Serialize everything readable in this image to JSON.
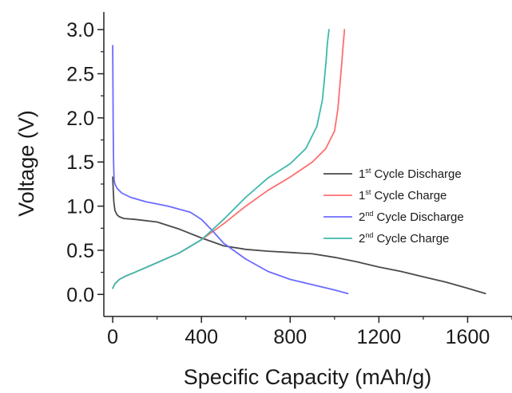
{
  "chart_data": {
    "type": "line",
    "title": "",
    "xlabel": "Specific Capacity (mAh/g)",
    "ylabel": "Voltage (V)",
    "xlim": [
      -40,
      1800
    ],
    "ylim": [
      -0.25,
      3.2
    ],
    "x_ticks": [
      0,
      400,
      800,
      1200,
      1600
    ],
    "x_tick_labels": [
      "0",
      "400",
      "800",
      "1200",
      "1600"
    ],
    "y_ticks": [
      0.0,
      0.5,
      1.0,
      1.5,
      2.0,
      2.5,
      3.0
    ],
    "y_tick_labels": [
      "0.0",
      "0.5",
      "1.0",
      "1.5",
      "2.0",
      "2.5",
      "3.0"
    ],
    "grid": false,
    "legend_position": "right-middle",
    "series": [
      {
        "name": "1st Cycle Discharge",
        "legend_main": "1",
        "legend_sup": "st",
        "legend_rest": " Cycle Discharge",
        "color": "#4a4a4a",
        "x": [
          0,
          2,
          5,
          10,
          20,
          30,
          50,
          100,
          200,
          300,
          400,
          500,
          600,
          700,
          800,
          900,
          1000,
          1100,
          1200,
          1300,
          1400,
          1500,
          1600,
          1680
        ],
        "y": [
          1.33,
          1.2,
          1.05,
          0.95,
          0.9,
          0.88,
          0.86,
          0.85,
          0.82,
          0.74,
          0.64,
          0.55,
          0.51,
          0.49,
          0.475,
          0.46,
          0.42,
          0.37,
          0.31,
          0.26,
          0.2,
          0.14,
          0.07,
          0.01
        ]
      },
      {
        "name": "1st Cycle Charge",
        "legend_main": "1",
        "legend_sup": "st",
        "legend_rest": " Cycle Charge",
        "color": "#ff6e6e",
        "x": [
          0,
          10,
          30,
          60,
          100,
          200,
          300,
          400,
          500,
          600,
          700,
          800,
          900,
          960,
          1000,
          1015,
          1025,
          1032,
          1038,
          1045
        ],
        "y": [
          0.07,
          0.12,
          0.17,
          0.21,
          0.25,
          0.36,
          0.47,
          0.62,
          0.8,
          1.0,
          1.18,
          1.33,
          1.5,
          1.65,
          1.85,
          2.1,
          2.4,
          2.6,
          2.8,
          3.0
        ]
      },
      {
        "name": "2nd Cycle Discharge",
        "legend_main": "2",
        "legend_sup": "nd",
        "legend_rest": " Cycle Discharge",
        "color": "#6b6bff",
        "x": [
          0,
          1,
          2,
          4,
          6,
          10,
          20,
          40,
          80,
          150,
          250,
          350,
          400,
          450,
          500,
          600,
          700,
          800,
          900,
          1000,
          1060
        ],
        "y": [
          2.82,
          2.4,
          1.9,
          1.5,
          1.3,
          1.25,
          1.2,
          1.15,
          1.1,
          1.05,
          1.0,
          0.93,
          0.85,
          0.72,
          0.58,
          0.4,
          0.26,
          0.17,
          0.11,
          0.05,
          0.01
        ]
      },
      {
        "name": "2nd Cycle Charge",
        "legend_main": "2",
        "legend_sup": "nd",
        "legend_rest": " Cycle Charge",
        "color": "#3fb8ad",
        "x": [
          0,
          10,
          30,
          60,
          100,
          200,
          300,
          400,
          500,
          600,
          700,
          800,
          870,
          920,
          945,
          955,
          962,
          968,
          975
        ],
        "y": [
          0.07,
          0.12,
          0.17,
          0.21,
          0.25,
          0.36,
          0.47,
          0.62,
          0.85,
          1.1,
          1.32,
          1.48,
          1.65,
          1.9,
          2.2,
          2.45,
          2.65,
          2.85,
          3.0
        ]
      }
    ]
  }
}
